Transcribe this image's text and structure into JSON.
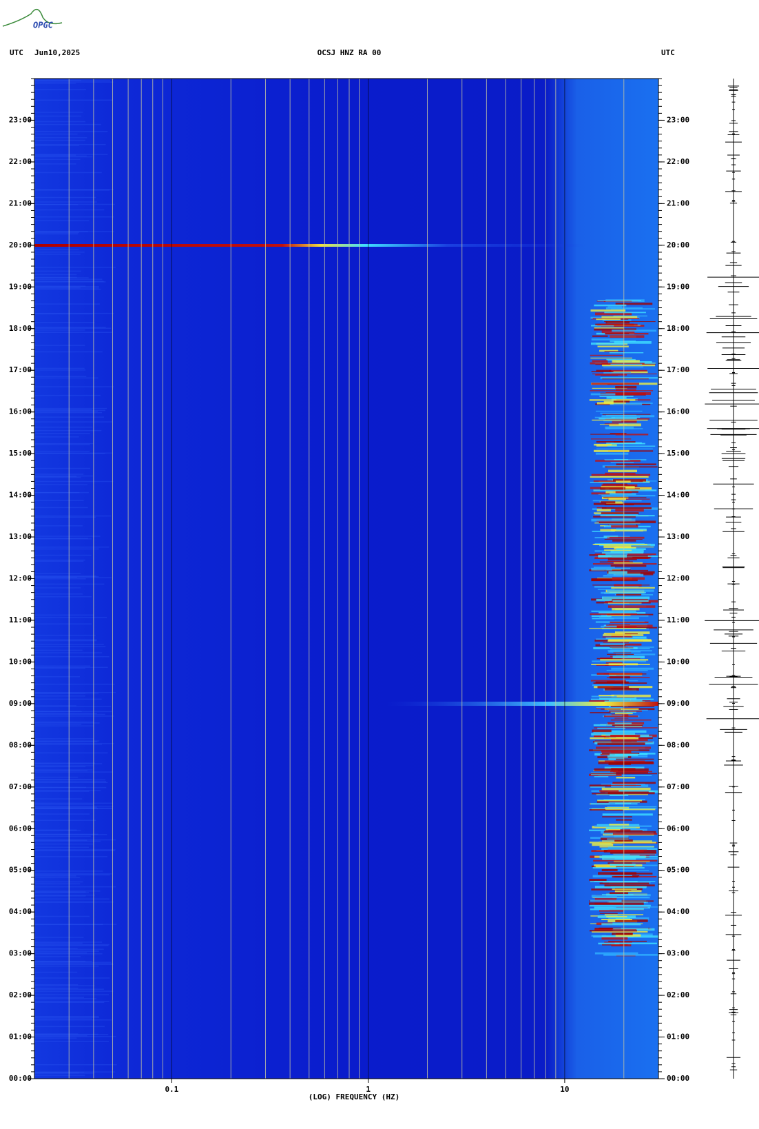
{
  "logo": "OPGC",
  "header": {
    "left_zone": "UTC",
    "date": "Jun10,2025",
    "station": "OCSJ HNZ RA 00",
    "right_zone": "UTC"
  },
  "chart_data": {
    "type": "spectrogram",
    "xlabel": "(LOG) FREQUENCY (HZ)",
    "xscale": "log",
    "xlim": [
      0.02,
      30
    ],
    "xticks": [
      0.1,
      1,
      10
    ],
    "ylim": [
      0,
      24
    ],
    "yticks": [
      {
        "value": 0,
        "label": "00:00"
      },
      {
        "value": 1,
        "label": "01:00"
      },
      {
        "value": 2,
        "label": "02:00"
      },
      {
        "value": 3,
        "label": "03:00"
      },
      {
        "value": 4,
        "label": "04:00"
      },
      {
        "value": 5,
        "label": "05:00"
      },
      {
        "value": 6,
        "label": "06:00"
      },
      {
        "value": 7,
        "label": "07:00"
      },
      {
        "value": 8,
        "label": "08:00"
      },
      {
        "value": 9,
        "label": "09:00"
      },
      {
        "value": 10,
        "label": "10:00"
      },
      {
        "value": 11,
        "label": "11:00"
      },
      {
        "value": 12,
        "label": "12:00"
      },
      {
        "value": 13,
        "label": "13:00"
      },
      {
        "value": 14,
        "label": "14:00"
      },
      {
        "value": 15,
        "label": "15:00"
      },
      {
        "value": 16,
        "label": "16:00"
      },
      {
        "value": 17,
        "label": "17:00"
      },
      {
        "value": 18,
        "label": "18:00"
      },
      {
        "value": 19,
        "label": "19:00"
      },
      {
        "value": 20,
        "label": "20:00"
      },
      {
        "value": 21,
        "label": "21:00"
      },
      {
        "value": 22,
        "label": "22:00"
      },
      {
        "value": 23,
        "label": "23:00"
      }
    ],
    "grid": true
  }
}
